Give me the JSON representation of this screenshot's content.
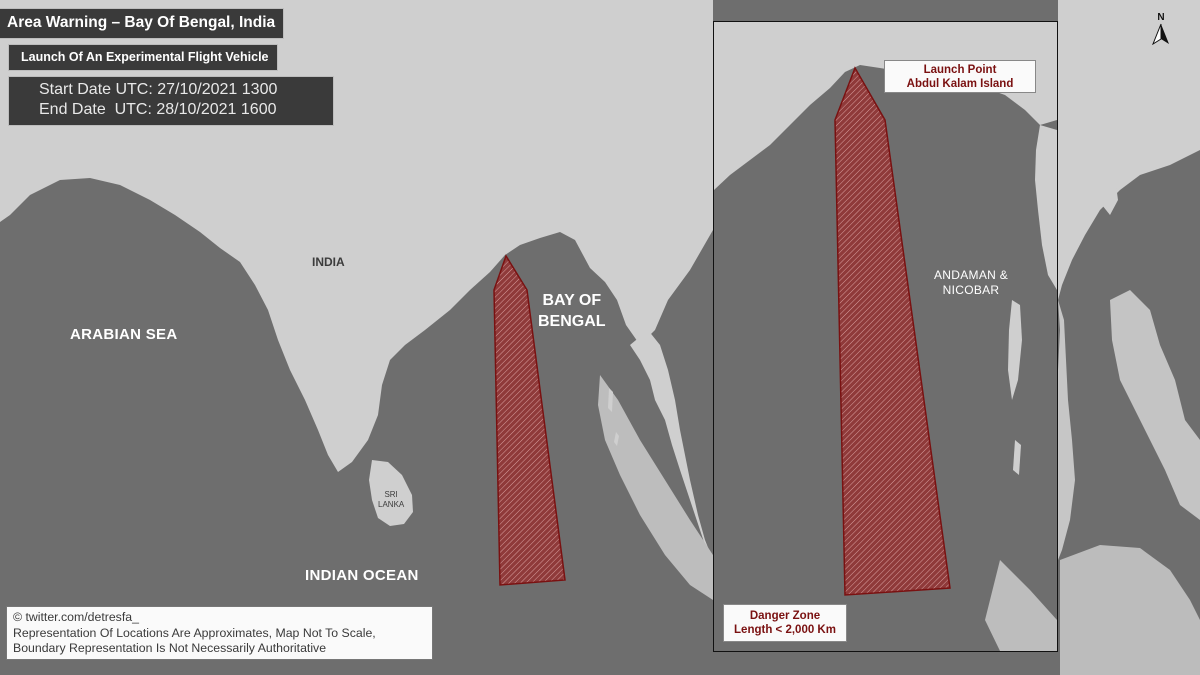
{
  "title": "Area Warning – Bay Of Bengal, India",
  "subtitle": "Launch Of An Experimental Flight Vehicle",
  "dates": {
    "start": "Start Date UTC: 27/10/2021 1300",
    "end": "End Date  UTC: 28/10/2021 1600"
  },
  "credit": {
    "line1": "© twitter.com/detresfa_",
    "line2": "Representation Of Locations Are Approximates, Map Not To Scale,",
    "line3": "Boundary Representation Is Not Necessarily Authoritative"
  },
  "labels": {
    "arabian_sea": "ARABIAN SEA",
    "india": "INDIA",
    "bay_line1": "BAY OF",
    "bay_line2": "BENGAL",
    "sri_line1": "SRI",
    "sri_line2": "LANKA",
    "indian_ocean": "INDIAN OCEAN",
    "andaman_line1": "ANDAMAN &",
    "andaman_line2": "NICOBAR"
  },
  "inset": {
    "launch_line1": "Launch Point",
    "launch_line2": "Abdul Kalam Island",
    "danger_line1": "Danger Zone",
    "danger_line2": "Length < 2,000 Km"
  },
  "compass": {
    "letter": "N"
  },
  "colors": {
    "water": "#6e6e6e",
    "land": "#cfcfcf",
    "danger_zone": "#8f3a3a",
    "danger_outline": "#7a1111"
  }
}
